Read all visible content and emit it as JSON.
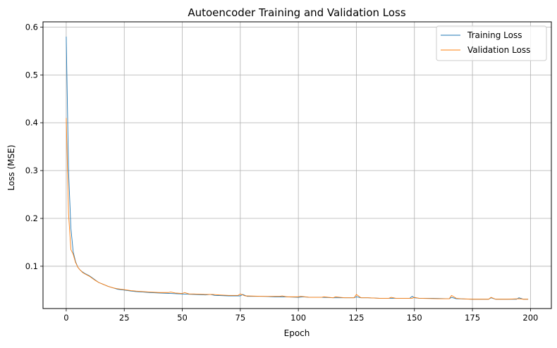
{
  "chart_data": {
    "type": "line",
    "title": "Autoencoder Training and Validation Loss",
    "xlabel": "Epoch",
    "ylabel": "Loss (MSE)",
    "xlim": [
      -10,
      209
    ],
    "ylim": [
      0.0115,
      0.611
    ],
    "xticks": [
      0,
      25,
      50,
      75,
      100,
      125,
      150,
      175,
      200
    ],
    "yticks": [
      0.1,
      0.2,
      0.3,
      0.4,
      0.5,
      0.6
    ],
    "ytick_labels": [
      "0.1",
      "0.2",
      "0.3",
      "0.4",
      "0.5",
      "0.6"
    ],
    "grid": true,
    "legend_position": "top-right",
    "series": [
      {
        "name": "Training Loss",
        "color": "#1f77b4",
        "points": [
          [
            0,
            0.58
          ],
          [
            1,
            0.3
          ],
          [
            2,
            0.18
          ],
          [
            3,
            0.13
          ],
          [
            4,
            0.11
          ],
          [
            5,
            0.098
          ],
          [
            6,
            0.092
          ],
          [
            7,
            0.088
          ],
          [
            8,
            0.085
          ],
          [
            10,
            0.08
          ],
          [
            12,
            0.073
          ],
          [
            14,
            0.066
          ],
          [
            16,
            0.062
          ],
          [
            18,
            0.058
          ],
          [
            20,
            0.055
          ],
          [
            22,
            0.052
          ],
          [
            25,
            0.05
          ],
          [
            28,
            0.048
          ],
          [
            30,
            0.047
          ],
          [
            33,
            0.046
          ],
          [
            36,
            0.045
          ],
          [
            40,
            0.044
          ],
          [
            45,
            0.043
          ],
          [
            50,
            0.042
          ],
          [
            55,
            0.041
          ],
          [
            60,
            0.04
          ],
          [
            62,
            0.041
          ],
          [
            64,
            0.039
          ],
          [
            70,
            0.038
          ],
          [
            75,
            0.038
          ],
          [
            76,
            0.041
          ],
          [
            78,
            0.037
          ],
          [
            85,
            0.037
          ],
          [
            90,
            0.036
          ],
          [
            95,
            0.036
          ],
          [
            100,
            0.035
          ],
          [
            102,
            0.036
          ],
          [
            105,
            0.035
          ],
          [
            110,
            0.035
          ],
          [
            115,
            0.034
          ],
          [
            120,
            0.034
          ],
          [
            124,
            0.034
          ],
          [
            125,
            0.036
          ],
          [
            127,
            0.034
          ],
          [
            130,
            0.034
          ],
          [
            135,
            0.033
          ],
          [
            140,
            0.033
          ],
          [
            145,
            0.033
          ],
          [
            148,
            0.033
          ],
          [
            149,
            0.037
          ],
          [
            150,
            0.034
          ],
          [
            152,
            0.033
          ],
          [
            158,
            0.033
          ],
          [
            165,
            0.032
          ],
          [
            166,
            0.035
          ],
          [
            168,
            0.032
          ],
          [
            175,
            0.031
          ],
          [
            182,
            0.031
          ],
          [
            183,
            0.034
          ],
          [
            185,
            0.031
          ],
          [
            190,
            0.031
          ],
          [
            194,
            0.031
          ],
          [
            195,
            0.034
          ],
          [
            197,
            0.031
          ],
          [
            199,
            0.031
          ]
        ]
      },
      {
        "name": "Validation Loss",
        "color": "#ff7f0e",
        "points": [
          [
            0,
            0.41
          ],
          [
            1,
            0.21
          ],
          [
            2,
            0.135
          ],
          [
            3,
            0.125
          ],
          [
            4,
            0.108
          ],
          [
            5,
            0.098
          ],
          [
            6,
            0.092
          ],
          [
            7,
            0.087
          ],
          [
            8,
            0.084
          ],
          [
            10,
            0.079
          ],
          [
            12,
            0.072
          ],
          [
            14,
            0.066
          ],
          [
            16,
            0.062
          ],
          [
            18,
            0.058
          ],
          [
            20,
            0.055
          ],
          [
            22,
            0.053
          ],
          [
            25,
            0.051
          ],
          [
            28,
            0.049
          ],
          [
            30,
            0.048
          ],
          [
            33,
            0.047
          ],
          [
            36,
            0.046
          ],
          [
            40,
            0.045
          ],
          [
            44,
            0.045
          ],
          [
            45,
            0.046
          ],
          [
            47,
            0.044
          ],
          [
            50,
            0.043
          ],
          [
            51,
            0.045
          ],
          [
            53,
            0.042
          ],
          [
            55,
            0.042
          ],
          [
            60,
            0.041
          ],
          [
            63,
            0.041
          ],
          [
            66,
            0.04
          ],
          [
            70,
            0.039
          ],
          [
            74,
            0.039
          ],
          [
            75,
            0.042
          ],
          [
            77,
            0.038
          ],
          [
            85,
            0.037
          ],
          [
            92,
            0.037
          ],
          [
            93,
            0.038
          ],
          [
            95,
            0.036
          ],
          [
            100,
            0.036
          ],
          [
            101,
            0.037
          ],
          [
            105,
            0.035
          ],
          [
            110,
            0.035
          ],
          [
            111,
            0.036
          ],
          [
            115,
            0.034
          ],
          [
            116,
            0.036
          ],
          [
            118,
            0.035
          ],
          [
            120,
            0.034
          ],
          [
            124,
            0.034
          ],
          [
            125,
            0.041
          ],
          [
            127,
            0.034
          ],
          [
            130,
            0.034
          ],
          [
            135,
            0.033
          ],
          [
            139,
            0.033
          ],
          [
            140,
            0.035
          ],
          [
            142,
            0.033
          ],
          [
            149,
            0.033
          ],
          [
            150,
            0.035
          ],
          [
            152,
            0.033
          ],
          [
            160,
            0.032
          ],
          [
            165,
            0.032
          ],
          [
            166,
            0.039
          ],
          [
            168,
            0.033
          ],
          [
            170,
            0.032
          ],
          [
            175,
            0.031
          ],
          [
            182,
            0.031
          ],
          [
            183,
            0.035
          ],
          [
            185,
            0.031
          ],
          [
            190,
            0.031
          ],
          [
            195,
            0.032
          ],
          [
            197,
            0.031
          ],
          [
            199,
            0.031
          ]
        ]
      }
    ]
  }
}
